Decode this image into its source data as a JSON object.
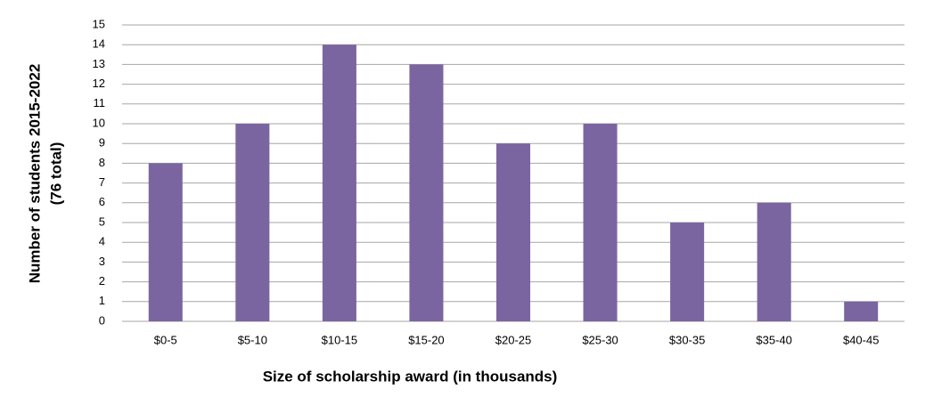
{
  "chart_data": {
    "type": "bar",
    "y_label": [
      "Number of students  2015-2022",
      "(76  total)"
    ],
    "x_label": "Size of scholarship award (in thousands)",
    "categories": [
      "$0-5",
      "$5-10",
      "$10-15",
      "$15-20",
      "$20-25",
      "$25-30",
      "$30-35",
      "$35-40",
      "$40-45"
    ],
    "values": [
      8,
      10,
      14,
      13,
      9,
      10,
      5,
      6,
      1
    ],
    "color": "#7b65a0",
    "ylim": [
      0,
      15
    ],
    "yticks": [
      0,
      1,
      2,
      3,
      4,
      5,
      6,
      7,
      8,
      9,
      10,
      11,
      12,
      13,
      14,
      15
    ],
    "grid": true
  }
}
